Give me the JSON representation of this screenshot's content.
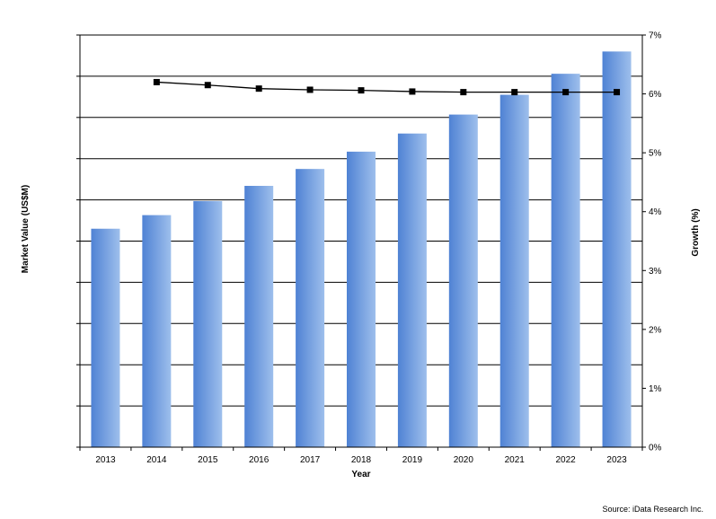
{
  "chart_data": {
    "type": "bar",
    "categories": [
      "2013",
      "2014",
      "2015",
      "2016",
      "2017",
      "2018",
      "2019",
      "2020",
      "2021",
      "2022",
      "2023"
    ],
    "series": [
      {
        "type": "bar",
        "axis": "left",
        "values": [
          5.3,
          5.63,
          5.97,
          6.34,
          6.75,
          7.17,
          7.61,
          8.07,
          8.55,
          9.06,
          9.6
        ]
      },
      {
        "type": "line",
        "axis": "right",
        "values": [
          null,
          6.2,
          6.15,
          6.09,
          6.07,
          6.06,
          6.04,
          6.03,
          6.03,
          6.03,
          6.03
        ]
      }
    ],
    "xlabel": "Year",
    "ylabel": "Market Value (US$M)",
    "y2label": "Growth (%)",
    "ylim": [
      0,
      10
    ],
    "y2lim": [
      0,
      7
    ],
    "y2ticks": [
      "0%",
      "1%",
      "2%",
      "3%",
      "4%",
      "5%",
      "6%",
      "7%"
    ],
    "grid": true,
    "bar_color": "#5b8fd8",
    "line_color": "#000000"
  },
  "source": "Source:  iData  Research  Inc."
}
